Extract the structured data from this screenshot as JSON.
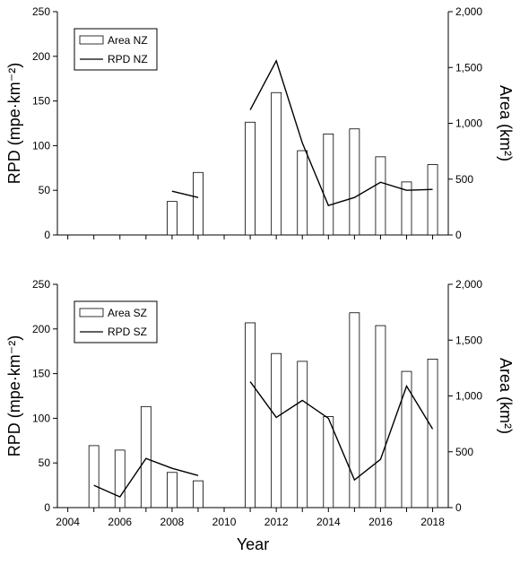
{
  "chart_data": [
    {
      "type": "bar+line",
      "panel": "top",
      "categories": [
        2005,
        2006,
        2007,
        2008,
        2009,
        2010,
        2011,
        2012,
        2013,
        2014,
        2015,
        2016,
        2017,
        2018
      ],
      "series": [
        {
          "name": "Area NZ",
          "kind": "bar",
          "axis": "right",
          "values": [
            null,
            null,
            null,
            300,
            560,
            null,
            1010,
            1275,
            755,
            905,
            950,
            700,
            475,
            630
          ]
        },
        {
          "name": "RPD NZ",
          "kind": "line",
          "axis": "left",
          "values": [
            null,
            null,
            null,
            49,
            42,
            null,
            140,
            195,
            103,
            33,
            42,
            59,
            50,
            51
          ]
        }
      ],
      "ylabel_left": "RPD (mpe·km⁻²)",
      "ylabel_right": "Area (km²)",
      "ylim_left": [
        0,
        250
      ],
      "ylim_right": [
        0,
        2000
      ],
      "yticks_left": [
        "0",
        "50",
        "100",
        "150",
        "200",
        "250"
      ],
      "yticks_right": [
        "0",
        "500",
        "1,000",
        "1,500",
        "2,000"
      ],
      "xlim": [
        2003.6,
        2018.6
      ],
      "legend": "top-left"
    },
    {
      "type": "bar+line",
      "panel": "bottom",
      "categories": [
        2005,
        2006,
        2007,
        2008,
        2009,
        2010,
        2011,
        2012,
        2013,
        2014,
        2015,
        2016,
        2017,
        2018
      ],
      "series": [
        {
          "name": "Area SZ",
          "kind": "bar",
          "axis": "right",
          "values": [
            555,
            515,
            905,
            315,
            240,
            null,
            1655,
            1380,
            1310,
            815,
            1745,
            1630,
            1220,
            1330
          ]
        },
        {
          "name": "RPD SZ",
          "kind": "line",
          "axis": "left",
          "values": [
            25,
            12,
            55,
            44,
            36,
            null,
            141,
            101,
            120,
            100,
            31,
            54,
            136,
            88
          ]
        }
      ],
      "ylabel_left": "RPD (mpe·km⁻²)",
      "ylabel_right": "Area (km²)",
      "ylim_left": [
        0,
        250
      ],
      "ylim_right": [
        0,
        2000
      ],
      "yticks_left": [
        "0",
        "50",
        "100",
        "150",
        "200",
        "250"
      ],
      "yticks_right": [
        "0",
        "500",
        "1,000",
        "1,500",
        "2,000"
      ],
      "xticks": [
        "2004",
        "2006",
        "2008",
        "2010",
        "2012",
        "2014",
        "2016",
        "2018"
      ],
      "xlabel": "Year",
      "xlim": [
        2003.6,
        2018.6
      ],
      "legend": "top-left"
    }
  ]
}
